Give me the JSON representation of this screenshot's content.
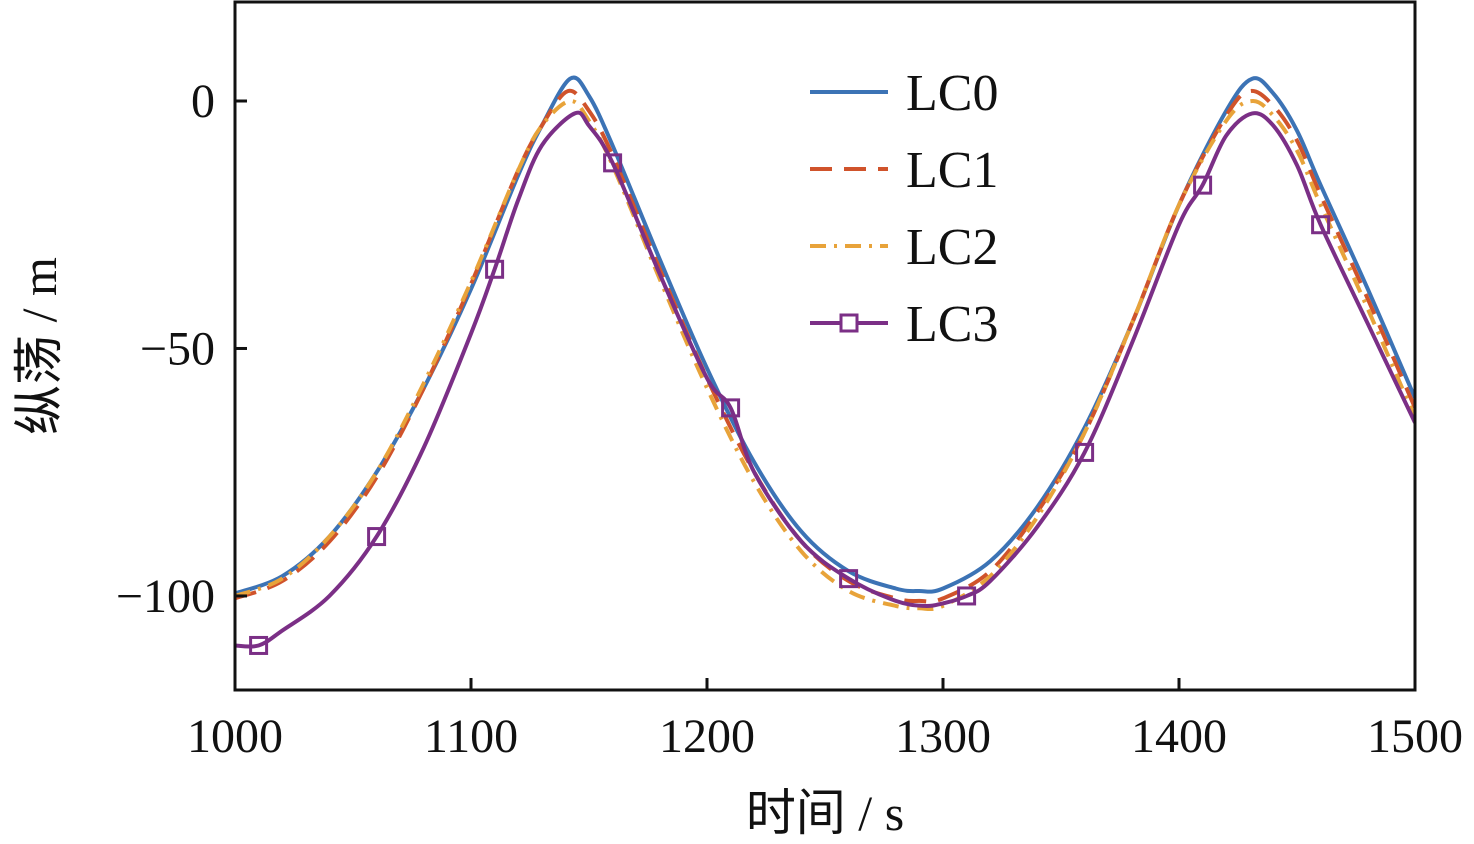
{
  "chart_data": {
    "type": "line",
    "title": "",
    "xlabel": "时间 / s",
    "ylabel": "纵荡 / m",
    "xlim": [
      1000,
      1500
    ],
    "ylim": [
      -119,
      20
    ],
    "xticks": [
      1000,
      1100,
      1200,
      1300,
      1400,
      1500
    ],
    "yticks": [
      0,
      -50,
      -100
    ],
    "xtick_labels": [
      "1000",
      "1100",
      "1200",
      "1300",
      "1400",
      "1500"
    ],
    "ytick_labels": [
      "0",
      "−50",
      "−100"
    ],
    "grid": false,
    "legend_position": "top-center",
    "series": [
      {
        "name": "LC0",
        "color": "#3c73b5",
        "style": "solid",
        "marker": "none",
        "x": [
          1000,
          1020,
          1040,
          1060,
          1080,
          1100,
          1120,
          1130,
          1142,
          1150,
          1160,
          1180,
          1200,
          1220,
          1240,
          1260,
          1280,
          1290,
          1300,
          1320,
          1340,
          1360,
          1380,
          1400,
          1420,
          1431,
          1440,
          1450,
          1460,
          1480,
          1500
        ],
        "y": [
          -99.5,
          -96,
          -88,
          -75,
          -58,
          -38,
          -15,
          -5,
          4.5,
          1,
          -9,
          -32,
          -54,
          -73,
          -87,
          -95,
          -98.5,
          -99,
          -98.5,
          -93,
          -82,
          -66,
          -45,
          -21,
          -2,
          4.5,
          1.5,
          -6,
          -17,
          -38,
          -60
        ]
      },
      {
        "name": "LC1",
        "color": "#d0532b",
        "style": "dashed",
        "marker": "none",
        "x": [
          1000,
          1020,
          1040,
          1060,
          1080,
          1100,
          1120,
          1130,
          1141,
          1150,
          1160,
          1180,
          1200,
          1220,
          1240,
          1260,
          1280,
          1290,
          1300,
          1320,
          1340,
          1360,
          1380,
          1400,
          1420,
          1430,
          1440,
          1450,
          1460,
          1480,
          1500
        ],
        "y": [
          -100.5,
          -97,
          -89,
          -76,
          -58,
          -37,
          -14,
          -5,
          2,
          -2,
          -11,
          -34,
          -56,
          -75,
          -89,
          -97,
          -100.5,
          -101,
          -100.5,
          -95,
          -83,
          -67,
          -45,
          -21,
          -3,
          2,
          -1,
          -8,
          -19,
          -40,
          -62
        ]
      },
      {
        "name": "LC2",
        "color": "#e8a33a",
        "style": "dashdot",
        "marker": "none",
        "x": [
          1000,
          1020,
          1040,
          1060,
          1080,
          1100,
          1120,
          1130,
          1142,
          1150,
          1160,
          1180,
          1200,
          1220,
          1240,
          1260,
          1280,
          1290,
          1300,
          1320,
          1340,
          1360,
          1380,
          1400,
          1420,
          1431,
          1440,
          1450,
          1460,
          1480,
          1500
        ],
        "y": [
          -100,
          -96.5,
          -88,
          -75,
          -57,
          -36.5,
          -14,
          -5,
          0,
          -4,
          -13,
          -36,
          -58,
          -77,
          -91,
          -99,
          -102,
          -102.5,
          -102,
          -96,
          -84,
          -67,
          -45,
          -21,
          -4,
          0,
          -3,
          -10,
          -21,
          -42,
          -64
        ]
      },
      {
        "name": "LC3",
        "color": "#7b2f86",
        "style": "solid",
        "marker": "square",
        "x": [
          1000,
          1010,
          1020,
          1040,
          1060,
          1080,
          1100,
          1110,
          1120,
          1130,
          1144,
          1150,
          1160,
          1180,
          1200,
          1210,
          1220,
          1240,
          1260,
          1280,
          1292,
          1300,
          1310,
          1320,
          1340,
          1360,
          1380,
          1400,
          1410,
          1420,
          1431,
          1440,
          1450,
          1460,
          1480,
          1500
        ],
        "y": [
          -110,
          -110,
          -107,
          -100,
          -88,
          -70,
          -47,
          -34,
          -20,
          -9,
          -2.5,
          -5,
          -12.5,
          -35,
          -56,
          -62,
          -75,
          -89,
          -96.5,
          -101,
          -102,
          -101.5,
          -100,
          -97,
          -86,
          -71,
          -49,
          -25,
          -17,
          -7,
          -2.5,
          -5,
          -13,
          -25,
          -45,
          -65
        ]
      }
    ],
    "markers": {
      "series": "LC3",
      "x": [
        1010,
        1060,
        1110,
        1160,
        1210,
        1260,
        1310,
        1360,
        1410,
        1460
      ],
      "y": [
        -110,
        -88,
        -34,
        -12.5,
        -62,
        -96.5,
        -100,
        -71,
        -17,
        -25
      ]
    }
  }
}
